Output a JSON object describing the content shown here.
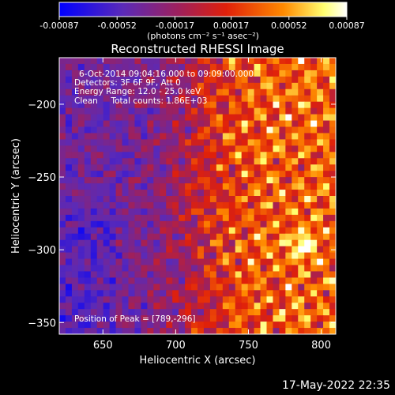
{
  "chart_data": {
    "type": "heatmap",
    "title": "Reconstructed RHESSI Image",
    "xlabel": "Heliocentric X (arcsec)",
    "ylabel": "Heliocentric Y (arcsec)",
    "xlim": [
      620,
      810
    ],
    "ylim": [
      -358,
      -168
    ],
    "xticks": [
      650,
      700,
      750,
      800
    ],
    "yticks": [
      -200,
      -250,
      -300,
      -350
    ],
    "xtick_labels": [
      "650",
      "700",
      "750",
      "800"
    ],
    "ytick_labels": [
      "−200",
      "−250",
      "−300",
      "−350"
    ],
    "grid": false,
    "colorbar": {
      "range": [
        -0.00087,
        0.00087
      ],
      "tick_values": [
        -0.00087,
        -0.00052,
        -0.00017,
        0.00017,
        0.00052,
        0.00087
      ],
      "tick_labels": [
        "-0.00087",
        "-0.00052",
        "-0.00017",
        "0.00017",
        "0.00052",
        "0.00087"
      ],
      "unit_label": "(photons cm⁻² s⁻¹ asec⁻²)",
      "colormap": [
        "#0000ff",
        "#7a2aa6",
        "#c8221f",
        "#ff8a00",
        "#ffff80",
        "#ffffff"
      ]
    },
    "annotations": [
      "6-Oct-2014 09:04:16.000 to 09:09:00.000",
      "Detectors: 3F 6F 9F, Att 0",
      "Energy Range: 12.0 - 25.0 keV",
      "Clean     Total counts: 1.86E+03"
    ],
    "peak_label": "Position of Peak = [789,-296]",
    "peak": [
      789,
      -296
    ]
  },
  "footer": {
    "timestamp": "17-May-2022 22:35"
  }
}
